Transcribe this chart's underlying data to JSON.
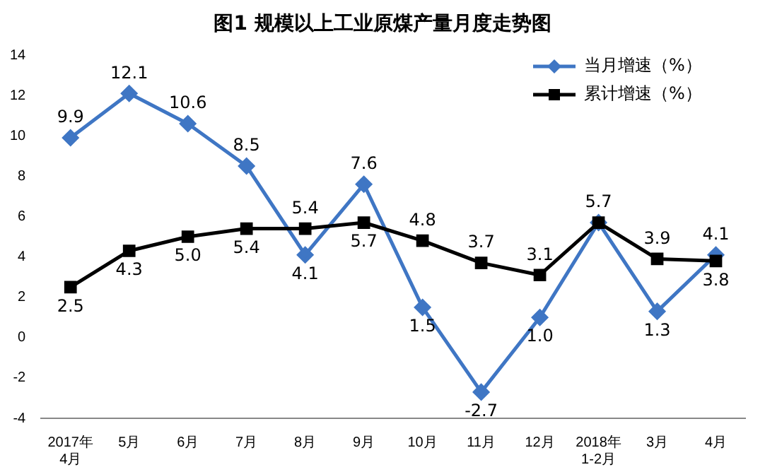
{
  "chart_data": {
    "type": "line",
    "title": "图1  规模以上工业原煤产量月度走势图",
    "categories": [
      "2017年4月",
      "5月",
      "6月",
      "7月",
      "8月",
      "9月",
      "10月",
      "11月",
      "12月",
      "2018年1-2月",
      "3月",
      "4月"
    ],
    "series": [
      {
        "name": "当月增速（%）",
        "color": "#3f76c4",
        "marker": "diamond",
        "values": [
          9.9,
          12.1,
          10.6,
          8.5,
          4.1,
          7.6,
          1.5,
          -2.7,
          1.0,
          5.7,
          1.3,
          4.1
        ],
        "value_labels": [
          "9.9",
          "12.1",
          "10.6",
          "8.5",
          "4.1",
          "7.6",
          "1.5",
          "-2.7",
          "1.0",
          "5.7",
          "1.3",
          "4.1"
        ]
      },
      {
        "name": "累计增速（%）",
        "color": "#000000",
        "marker": "square",
        "values": [
          2.5,
          4.3,
          5.0,
          5.4,
          5.4,
          5.7,
          4.8,
          3.7,
          3.1,
          5.7,
          3.9,
          3.8
        ],
        "value_labels": [
          "2.5",
          "4.3",
          "5.0",
          "5.4",
          "5.4",
          "5.7",
          "4.8",
          "3.7",
          "3.1",
          null,
          "3.9",
          "3.8"
        ]
      }
    ],
    "ylim": [
      -4,
      14
    ],
    "yticks": [
      -4,
      -2,
      0,
      2,
      4,
      6,
      8,
      10,
      12,
      14
    ],
    "grid": false,
    "legend": "top right",
    "line_style": "solid"
  }
}
